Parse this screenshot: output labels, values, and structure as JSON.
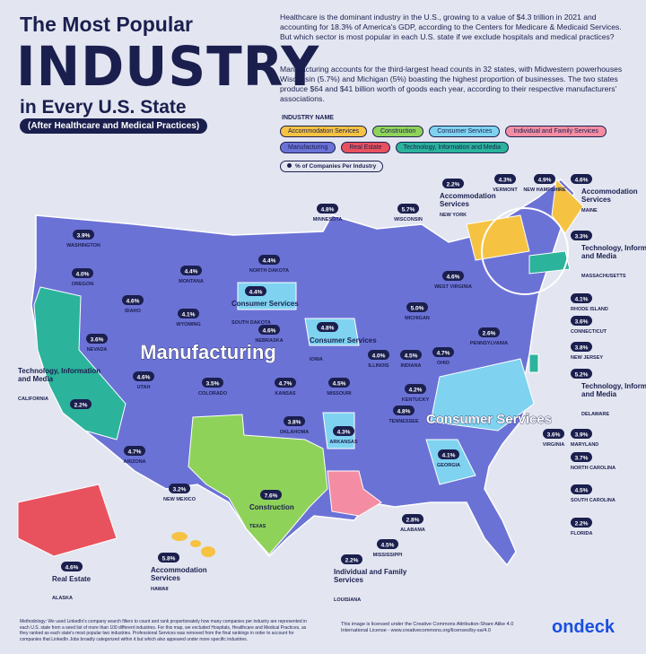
{
  "header": {
    "title_top": "The Most Popular",
    "title_main": "INDUSTRY",
    "title_bottom": "in Every U.S. State",
    "subtitle": "(After Healthcare and Medical Practices)"
  },
  "intro": [
    "Healthcare is the dominant industry in the U.S., growing to a value of $4.3 trillion in 2021 and accounting for 18.3% of America's GDP, according to the Centers for Medicare & Medicaid Services. But which sector is most popular in each U.S. state if we exclude hospitals and medical practices?",
    "Manufacturing accounts for the third-largest head counts in 32 states, with Midwestern powerhouses Wisconsin (5.7%) and Michigan (5%) boasting the highest proportion of businesses. The two states produce $64 and $41 billion worth of goods each year, according to their respective manufacturers' associations."
  ],
  "legend": {
    "title": "INDUSTRY NAME",
    "items": [
      {
        "label": "Accommodation Services",
        "color": "#f5c242"
      },
      {
        "label": "Construction",
        "color": "#8fd25a"
      },
      {
        "label": "Consumer Services",
        "color": "#7fd3f0"
      },
      {
        "label": "Individual and Family Services",
        "color": "#f48da3"
      },
      {
        "label": "Manufacturing",
        "color": "#6b72d6"
      },
      {
        "label": "Real Estate",
        "color": "#e8525f"
      },
      {
        "label": "Technology, Information and Media",
        "color": "#2bb39b"
      }
    ],
    "note": "% of Companies Per Industry"
  },
  "map_labels": [
    "Manufacturing",
    "Consumer Services"
  ],
  "states": [
    {
      "name": "WASHINGTON",
      "pct": "3.9%"
    },
    {
      "name": "OREGON",
      "pct": "4.0%"
    },
    {
      "name": "IDAHO",
      "pct": "4.6%"
    },
    {
      "name": "MONTANA",
      "pct": "4.4%"
    },
    {
      "name": "NORTH DAKOTA",
      "pct": "4.4%"
    },
    {
      "name": "MINNESOTA",
      "pct": "4.8%"
    },
    {
      "name": "WISCONSIN",
      "pct": "5.7%"
    },
    {
      "name": "SOUTH DAKOTA",
      "pct": "4.4%",
      "industry": "Consumer Services"
    },
    {
      "name": "WYOMING",
      "pct": "4.1%"
    },
    {
      "name": "NEVADA",
      "pct": "3.6%"
    },
    {
      "name": "NEBRASKA",
      "pct": "4.6%"
    },
    {
      "name": "IOWA",
      "pct": "4.8%",
      "industry": "Consumer Services"
    },
    {
      "name": "MICHIGAN",
      "pct": "5.0%"
    },
    {
      "name": "WEST VIRGINIA",
      "pct": "4.6%"
    },
    {
      "name": "UTAH",
      "pct": "4.6%"
    },
    {
      "name": "COLORADO",
      "pct": "3.5%"
    },
    {
      "name": "KANSAS",
      "pct": "4.7%"
    },
    {
      "name": "MISSOURI",
      "pct": "4.5%"
    },
    {
      "name": "ILLINOIS",
      "pct": "4.0%"
    },
    {
      "name": "INDIANA",
      "pct": "4.5%"
    },
    {
      "name": "OHIO",
      "pct": "4.7%"
    },
    {
      "name": "PENNSYLVANIA",
      "pct": "2.6%"
    },
    {
      "name": "KENTUCKY",
      "pct": "4.2%"
    },
    {
      "name": "TENNESSEE",
      "pct": "4.8%"
    },
    {
      "name": "CALIFORNIA",
      "pct": "2.2%",
      "industry": "Technology, Information and Media"
    },
    {
      "name": "OKLAHOMA",
      "pct": "3.8%"
    },
    {
      "name": "ARKANSAS",
      "pct": "4.3%"
    },
    {
      "name": "ARIZONA",
      "pct": "4.7%"
    },
    {
      "name": "NEW MEXICO",
      "pct": "3.2%"
    },
    {
      "name": "TEXAS",
      "pct": "7.6%",
      "industry": "Construction"
    },
    {
      "name": "GEORGIA",
      "pct": "4.1%"
    },
    {
      "name": "ALABAMA",
      "pct": "2.8%"
    },
    {
      "name": "MISSISSIPPI",
      "pct": "4.5%"
    },
    {
      "name": "LOUISIANA",
      "pct": "2.2%",
      "industry": "Individual and Family Services"
    },
    {
      "name": "ALASKA",
      "pct": "4.6%",
      "industry": "Real Estate"
    },
    {
      "name": "HAWAII",
      "pct": "5.8%",
      "industry": "Accommodation Services"
    },
    {
      "name": "FLORIDA",
      "pct": "2.2%"
    },
    {
      "name": "SOUTH CAROLINA",
      "pct": "4.5%"
    },
    {
      "name": "NORTH CAROLINA",
      "pct": "3.7%"
    },
    {
      "name": "MARYLAND",
      "pct": "3.9%"
    },
    {
      "name": "VIRGINIA",
      "pct": "3.6%"
    },
    {
      "name": "DELAWARE",
      "pct": "5.2%",
      "industry": "Technology, Information and Media"
    },
    {
      "name": "NEW JERSEY",
      "pct": "3.8%"
    },
    {
      "name": "CONNECTICUT",
      "pct": "3.6%"
    },
    {
      "name": "RHODE ISLAND",
      "pct": "4.1%"
    },
    {
      "name": "MASSACHUSETTS",
      "pct": "3.3%",
      "industry": "Technology, Information and Media"
    },
    {
      "name": "MAINE",
      "pct": "4.6%",
      "industry": "Accommodation Services"
    },
    {
      "name": "NEW HAMPSHIRE",
      "pct": "4.9%"
    },
    {
      "name": "VERMONT",
      "pct": "4.3%"
    },
    {
      "name": "NEW YORK",
      "pct": "2.2%",
      "industry": "Accommodation Services"
    }
  ],
  "footer": {
    "methodology": "Methodology: We used LinkedIn's company search filters to count and rank proportionately how many companies per industry are represented in each U.S. state from a seed list of more than 100 different industries. For this map, we excluded Hospitals, Healthcare and Medical Practices, as they ranked as each state's most popular two industries. Professional Services was removed from the final rankings in order to account for companies that LinkedIn Jobs broadly categorized within it but which also appeared under more specific industries.",
    "license": "This image is licensed under the Creative Commons Attribution-Share Alike 4.0 International License - www.creativecommons.org/licenses/by-sa/4.0",
    "brand": "ondeck"
  }
}
